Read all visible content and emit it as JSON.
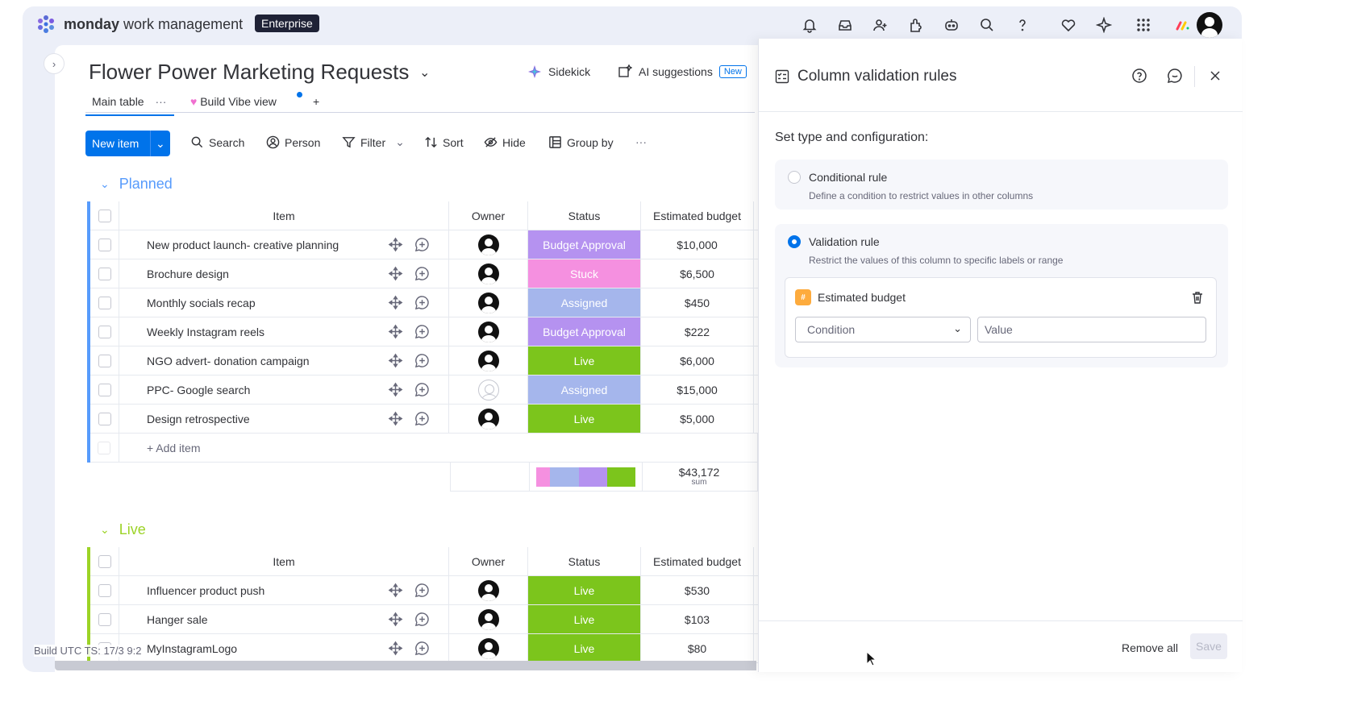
{
  "brand": {
    "name_bold": "monday",
    "name_rest": "work management",
    "plan": "Enterprise"
  },
  "topbar_icons": [
    "bell-icon",
    "inbox-icon",
    "invite-user-icon",
    "apps-icon",
    "robot-icon",
    "search-icon",
    "help-icon",
    "heart-icon",
    "sparkle-icon",
    "grid-icon",
    "monday-dev-icon"
  ],
  "board": {
    "title": "Flower Power Marketing Requests",
    "sidekick": "Sidekick",
    "ai_suggestions": "AI suggestions",
    "ai_badge": "New"
  },
  "tabs": {
    "main": "Main table",
    "main_more": "···",
    "vibe": "Build Vibe view",
    "add": "+"
  },
  "toolbar": {
    "new_item": "New item",
    "search": "Search",
    "person": "Person",
    "filter": "Filter",
    "sort": "Sort",
    "hide": "Hide",
    "group_by": "Group by",
    "more": "···"
  },
  "colors": {
    "planned": "#579bfc",
    "live": "#9cd326",
    "budget_approval": "#a25ddc",
    "stuck": "#ff5ac4",
    "assigned": "#7e9af5",
    "live_status": "#7cc51c",
    "primary": "#0073ea"
  },
  "columns": {
    "item": "Item",
    "owner": "Owner",
    "status": "Status",
    "budget": "Estimated budget"
  },
  "groups": [
    {
      "name": "Planned",
      "color": "#579bfc",
      "rows": [
        {
          "item": "New product launch- creative planning",
          "status": "Budget Approval",
          "status_color": "#b592f0",
          "budget": "$10,000",
          "owner": "user"
        },
        {
          "item": "Brochure design",
          "status": "Stuck",
          "status_color": "#f590e0",
          "budget": "$6,500",
          "owner": "user"
        },
        {
          "item": "Monthly socials recap",
          "status": "Assigned",
          "status_color": "#a5b6ec",
          "budget": "$450",
          "owner": "user"
        },
        {
          "item": "Weekly Instagram reels",
          "status": "Budget Approval",
          "status_color": "#b592f0",
          "budget": "$222",
          "owner": "user"
        },
        {
          "item": "NGO advert- donation campaign",
          "status": "Live",
          "status_color": "#7cc51c",
          "budget": "$6,000",
          "owner": "user"
        },
        {
          "item": "PPC- Google search",
          "status": "Assigned",
          "status_color": "#a5b6ec",
          "budget": "$15,000",
          "owner": "empty"
        },
        {
          "item": "Design retrospective",
          "status": "Live",
          "status_color": "#7cc51c",
          "budget": "$5,000",
          "owner": "user"
        }
      ],
      "add_item": "+ Add item",
      "sum_value": "$43,172",
      "sum_label": "sum",
      "status_summary": [
        {
          "color": "#f590e0",
          "fraction": 0.14
        },
        {
          "color": "#a5b6ec",
          "fraction": 0.29
        },
        {
          "color": "#b592f0",
          "fraction": 0.28
        },
        {
          "color": "#7cc51c",
          "fraction": 0.29
        }
      ]
    },
    {
      "name": "Live",
      "color": "#9cd326",
      "rows": [
        {
          "item": "Influencer product push",
          "status": "Live",
          "status_color": "#7cc51c",
          "budget": "$530",
          "owner": "user"
        },
        {
          "item": "Hanger sale",
          "status": "Live",
          "status_color": "#7cc51c",
          "budget": "$103",
          "owner": "user"
        },
        {
          "item": "MyInstagramLogo",
          "status": "Live",
          "status_color": "#7cc51c",
          "budget": "$80",
          "owner": "user"
        }
      ]
    }
  ],
  "panel": {
    "title": "Column validation rules",
    "subtitle": "Set type and configuration:",
    "conditional": {
      "title": "Conditional rule",
      "desc": "Define a condition to restrict values in other columns"
    },
    "validation": {
      "title": "Validation rule",
      "desc": "Restrict the values of this column to specific labels or range"
    },
    "rule_column": "Estimated budget",
    "condition_placeholder": "Condition",
    "value_placeholder": "Value",
    "remove_all": "Remove all",
    "save": "Save"
  },
  "build_info": "Build UTC TS: 17/3 9:2"
}
